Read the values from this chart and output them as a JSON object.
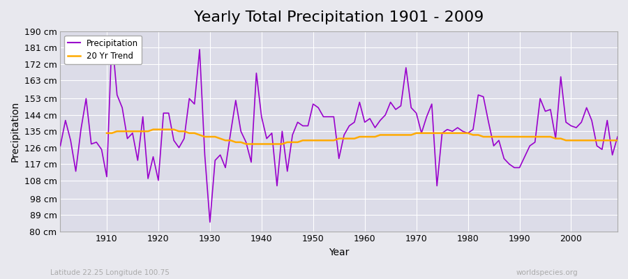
{
  "title": "Yearly Total Precipitation 1901 - 2009",
  "xlabel": "Year",
  "ylabel": "Precipitation",
  "subtitle_left": "Latitude 22.25 Longitude 100.75",
  "subtitle_right": "worldspecies.org",
  "years": [
    1901,
    1902,
    1903,
    1904,
    1905,
    1906,
    1907,
    1908,
    1909,
    1910,
    1911,
    1912,
    1913,
    1914,
    1915,
    1916,
    1917,
    1918,
    1919,
    1920,
    1921,
    1922,
    1923,
    1924,
    1925,
    1926,
    1927,
    1928,
    1929,
    1930,
    1931,
    1932,
    1933,
    1934,
    1935,
    1936,
    1937,
    1938,
    1939,
    1940,
    1941,
    1942,
    1943,
    1944,
    1945,
    1946,
    1947,
    1948,
    1949,
    1950,
    1951,
    1952,
    1953,
    1954,
    1955,
    1956,
    1957,
    1958,
    1959,
    1960,
    1961,
    1962,
    1963,
    1964,
    1965,
    1966,
    1967,
    1968,
    1969,
    1970,
    1971,
    1972,
    1973,
    1974,
    1975,
    1976,
    1977,
    1978,
    1979,
    1980,
    1981,
    1982,
    1983,
    1984,
    1985,
    1986,
    1987,
    1988,
    1989,
    1990,
    1991,
    1992,
    1993,
    1994,
    1995,
    1996,
    1997,
    1998,
    1999,
    2000,
    2001,
    2002,
    2003,
    2004,
    2005,
    2006,
    2007,
    2008,
    2009
  ],
  "precip": [
    127,
    141,
    130,
    113,
    136,
    153,
    128,
    129,
    125,
    110,
    187,
    155,
    148,
    131,
    134,
    119,
    143,
    109,
    121,
    108,
    145,
    145,
    130,
    126,
    131,
    153,
    150,
    180,
    122,
    85,
    119,
    122,
    115,
    134,
    152,
    135,
    129,
    118,
    167,
    143,
    131,
    134,
    105,
    135,
    113,
    133,
    140,
    138,
    138,
    150,
    148,
    143,
    143,
    143,
    120,
    133,
    138,
    140,
    151,
    140,
    142,
    137,
    141,
    144,
    151,
    147,
    149,
    170,
    148,
    145,
    134,
    143,
    150,
    105,
    134,
    136,
    135,
    137,
    135,
    134,
    136,
    155,
    154,
    140,
    127,
    130,
    120,
    117,
    115,
    115,
    121,
    127,
    129,
    153,
    146,
    147,
    131,
    165,
    140,
    138,
    137,
    140,
    148,
    141,
    127,
    125,
    141,
    122,
    132
  ],
  "trend_years": [
    1910,
    1911,
    1912,
    1913,
    1914,
    1915,
    1916,
    1917,
    1918,
    1919,
    1920,
    1921,
    1922,
    1923,
    1924,
    1925,
    1926,
    1927,
    1928,
    1929,
    1930,
    1931,
    1932,
    1933,
    1934,
    1935,
    1936,
    1937,
    1938,
    1939,
    1940,
    1941,
    1942,
    1943,
    1944,
    1945,
    1946,
    1947,
    1948,
    1949,
    1950,
    1951,
    1952,
    1953,
    1954,
    1955,
    1956,
    1957,
    1958,
    1959,
    1960,
    1961,
    1962,
    1963,
    1964,
    1965,
    1966,
    1967,
    1968,
    1969,
    1970,
    1971,
    1972,
    1973,
    1974,
    1975,
    1976,
    1977,
    1978,
    1979,
    1980,
    1981,
    1982,
    1983,
    1984,
    1985,
    1986,
    1987,
    1988,
    1989,
    1990,
    1991,
    1992,
    1993,
    1994,
    1995,
    1996,
    1997,
    1998,
    1999,
    2000,
    2001,
    2002,
    2003,
    2004,
    2005,
    2006,
    2007,
    2008,
    2009
  ],
  "trend": [
    134,
    134,
    135,
    135,
    135,
    135,
    135,
    135,
    135,
    136,
    136,
    136,
    136,
    136,
    135,
    135,
    134,
    134,
    133,
    132,
    132,
    132,
    131,
    130,
    130,
    129,
    129,
    128,
    128,
    128,
    128,
    128,
    128,
    128,
    128,
    129,
    129,
    129,
    130,
    130,
    130,
    130,
    130,
    130,
    130,
    131,
    131,
    131,
    131,
    132,
    132,
    132,
    132,
    133,
    133,
    133,
    133,
    133,
    133,
    133,
    134,
    134,
    134,
    134,
    134,
    134,
    134,
    134,
    134,
    134,
    134,
    133,
    133,
    132,
    132,
    132,
    132,
    132,
    132,
    132,
    132,
    132,
    132,
    132,
    132,
    132,
    132,
    131,
    131,
    130,
    130,
    130,
    130,
    130,
    130,
    130,
    130,
    130,
    130,
    130
  ],
  "ylim": [
    80,
    190
  ],
  "yticks": [
    80,
    89,
    98,
    108,
    117,
    126,
    135,
    144,
    153,
    163,
    172,
    181,
    190
  ],
  "ytick_labels": [
    "80 cm",
    "89 cm",
    "98 cm",
    "108 cm",
    "117 cm",
    "126 cm",
    "135 cm",
    "144 cm",
    "153 cm",
    "163 cm",
    "172 cm",
    "181 cm",
    "190 cm"
  ],
  "xticks": [
    1910,
    1920,
    1930,
    1940,
    1950,
    1960,
    1970,
    1980,
    1990,
    2000
  ],
  "precip_color": "#9900cc",
  "trend_color": "#ffaa00",
  "bg_color": "#e8e8ee",
  "plot_bg": "#dcdce8",
  "grid_color": "#ffffff",
  "title_fontsize": 16,
  "axis_fontsize": 10,
  "tick_fontsize": 9
}
